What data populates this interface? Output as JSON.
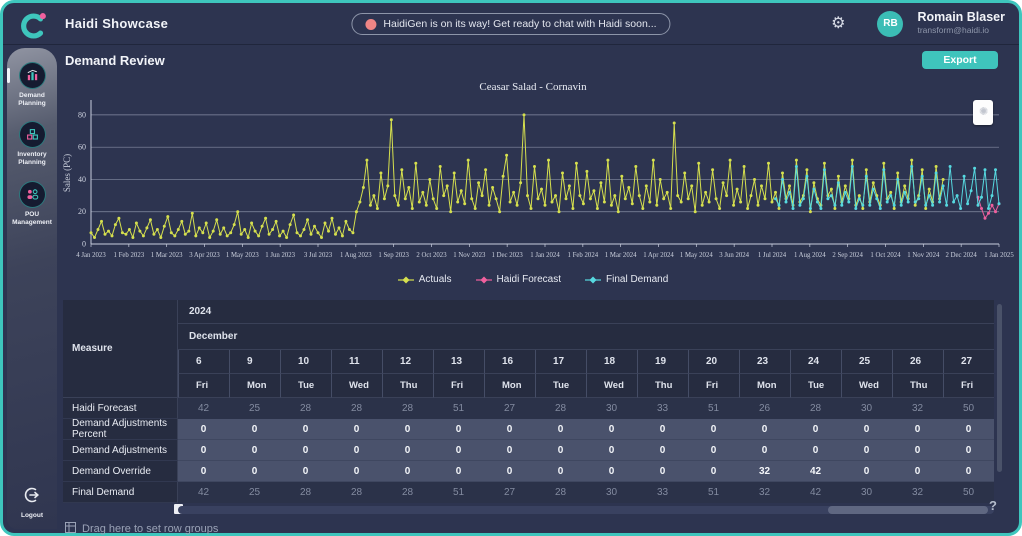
{
  "app": {
    "title": "Haidi Showcase",
    "banner": "HaidiGen is on its way! Get ready to chat with Haidi soon...",
    "user": {
      "name": "Romain Blaser",
      "email": "transform@haidi.io",
      "initials": "RB"
    }
  },
  "sidebar": {
    "items": [
      {
        "label": "Demand Planning",
        "icon": "bar-chart-icon",
        "active": true
      },
      {
        "label": "Inventory Planning",
        "icon": "inventory-boxes-icon",
        "active": false
      },
      {
        "label": "POU Management",
        "icon": "people-icon",
        "active": false
      }
    ],
    "logout_label": "Logout"
  },
  "page": {
    "title": "Demand Review",
    "export_label": "Export",
    "help_label": "?",
    "drag_hint": "Drag here to set row groups"
  },
  "colors": {
    "brand_teal": "#3ec6bd",
    "accent_pink": "#f0609e",
    "banner_dot": "#ef8585",
    "background_navy": "#2d3450",
    "actuals_yellow": "#d6e04e",
    "forecast_pink": "#f0609e",
    "final_demand_cyan": "#56d9e0"
  },
  "chart_data": {
    "type": "line",
    "title": "Ceasar Salad - Cornavin",
    "ylabel": "Sales (PC)",
    "ylim": [
      0,
      88
    ],
    "yticks": [
      0,
      20,
      40,
      60,
      80
    ],
    "grid": true,
    "legend_position": "bottom",
    "x_total": 261,
    "x_tick_labels": [
      "4 Jan 2023",
      "1 Feb 2023",
      "1 Mar 2023",
      "3 Apr 2023",
      "1 May 2023",
      "1 Jun 2023",
      "3 Jul 2023",
      "1 Aug 2023",
      "1 Sep 2023",
      "2 Oct 2023",
      "1 Nov 2023",
      "1 Dec 2023",
      "1 Jan 2024",
      "1 Feb 2024",
      "1 Mar 2024",
      "1 Apr 2024",
      "1 May 2024",
      "3 Jun 2024",
      "1 Jul 2024",
      "1 Aug 2024",
      "2 Sep 2024",
      "1 Oct 2024",
      "1 Nov 2024",
      "2 Dec 2024",
      "1 Jan 2025"
    ],
    "series": [
      {
        "name": "Actuals",
        "color": "#d6e04e",
        "start": 0,
        "values": [
          7,
          4,
          9,
          14,
          6,
          8,
          5,
          12,
          16,
          7,
          6,
          9,
          4,
          13,
          8,
          5,
          10,
          15,
          6,
          9,
          4,
          11,
          17,
          7,
          5,
          9,
          14,
          6,
          8,
          19,
          5,
          10,
          7,
          13,
          4,
          8,
          15,
          6,
          10,
          5,
          7,
          12,
          20,
          6,
          9,
          4,
          13,
          8,
          5,
          11,
          16,
          6,
          9,
          14,
          5,
          8,
          4,
          12,
          18,
          7,
          5,
          9,
          15,
          6,
          11,
          7,
          4,
          13,
          8,
          16,
          6,
          10,
          5,
          14,
          9,
          7,
          20,
          26,
          35,
          52,
          24,
          30,
          22,
          44,
          28,
          36,
          77,
          30,
          24,
          46,
          28,
          35,
          22,
          50,
          26,
          32,
          24,
          40,
          28,
          22,
          48,
          30,
          36,
          20,
          44,
          26,
          33,
          25,
          52,
          28,
          22,
          38,
          30,
          46,
          24,
          35,
          28,
          20,
          42,
          55,
          26,
          32,
          24,
          38,
          80,
          30,
          22,
          48,
          28,
          34,
          24,
          52,
          26,
          30,
          20,
          44,
          28,
          36,
          22,
          50,
          30,
          25,
          45,
          28,
          33,
          22,
          38,
          26,
          52,
          24,
          30,
          20,
          42,
          28,
          35,
          25,
          48,
          30,
          22,
          36,
          26,
          52,
          24,
          40,
          28,
          32,
          22,
          75,
          30,
          26,
          44,
          28,
          36,
          20,
          50,
          24,
          32,
          26,
          46,
          28,
          22,
          38,
          30,
          52,
          24,
          34,
          26,
          48,
          22,
          30,
          40,
          24,
          36,
          28,
          50,
          26,
          32,
          22,
          44,
          28,
          36,
          24,
          52,
          26,
          30,
          46,
          20,
          38,
          28,
          24,
          50,
          30,
          34,
          22,
          42,
          26,
          36,
          28,
          52,
          24,
          30,
          22,
          46,
          26,
          38,
          30,
          24,
          50,
          28,
          32,
          22,
          44,
          26,
          36,
          28,
          52,
          24,
          30,
          46,
          22,
          34,
          26,
          48,
          28,
          40
        ]
      },
      {
        "name": "Haidi Forecast",
        "color": "#f0609e",
        "start": 254,
        "values": [
          29,
          22,
          16,
          19,
          24,
          20,
          25
        ]
      },
      {
        "name": "Final Demand",
        "color": "#56d9e0",
        "start": 196,
        "values": [
          28,
          24,
          40,
          26,
          32,
          22,
          48,
          24,
          28,
          42,
          22,
          34,
          26,
          22,
          46,
          28,
          30,
          24,
          38,
          24,
          32,
          26,
          48,
          22,
          28,
          24,
          42,
          24,
          34,
          28,
          22,
          46,
          26,
          30,
          24,
          40,
          24,
          32,
          26,
          48,
          26,
          28,
          42,
          24,
          30,
          24,
          44,
          26,
          36,
          24,
          48,
          26,
          30,
          22,
          42,
          25,
          33,
          47,
          24,
          29,
          46,
          22,
          30,
          46,
          25
        ]
      }
    ]
  },
  "table": {
    "measure_header": "Measure",
    "year": "2024",
    "month": "December",
    "days": [
      "6",
      "9",
      "10",
      "11",
      "12",
      "13",
      "16",
      "17",
      "18",
      "19",
      "20",
      "23",
      "24",
      "25",
      "26",
      "27"
    ],
    "weekdays": [
      "Fri",
      "Mon",
      "Tue",
      "Wed",
      "Thu",
      "Fri",
      "Mon",
      "Tue",
      "Wed",
      "Thu",
      "Fri",
      "Mon",
      "Tue",
      "Wed",
      "Thu",
      "Fri"
    ],
    "rows": [
      {
        "measure": "Haidi Forecast",
        "editable": false,
        "values": [
          42,
          25,
          28,
          28,
          28,
          51,
          27,
          28,
          30,
          33,
          51,
          26,
          28,
          30,
          32,
          50
        ]
      },
      {
        "measure": "Demand Adjustments Percent",
        "editable": true,
        "values": [
          0,
          0,
          0,
          0,
          0,
          0,
          0,
          0,
          0,
          0,
          0,
          0,
          0,
          0,
          0,
          0
        ]
      },
      {
        "measure": "Demand Adjustments",
        "editable": true,
        "values": [
          0,
          0,
          0,
          0,
          0,
          0,
          0,
          0,
          0,
          0,
          0,
          0,
          0,
          0,
          0,
          0
        ]
      },
      {
        "measure": "Demand Override",
        "editable": true,
        "values": [
          0,
          0,
          0,
          0,
          0,
          0,
          0,
          0,
          0,
          0,
          0,
          32,
          42,
          0,
          0,
          0
        ]
      },
      {
        "measure": "Final Demand",
        "editable": false,
        "values": [
          42,
          25,
          28,
          28,
          28,
          51,
          27,
          28,
          30,
          33,
          51,
          32,
          42,
          30,
          32,
          50
        ]
      }
    ]
  }
}
